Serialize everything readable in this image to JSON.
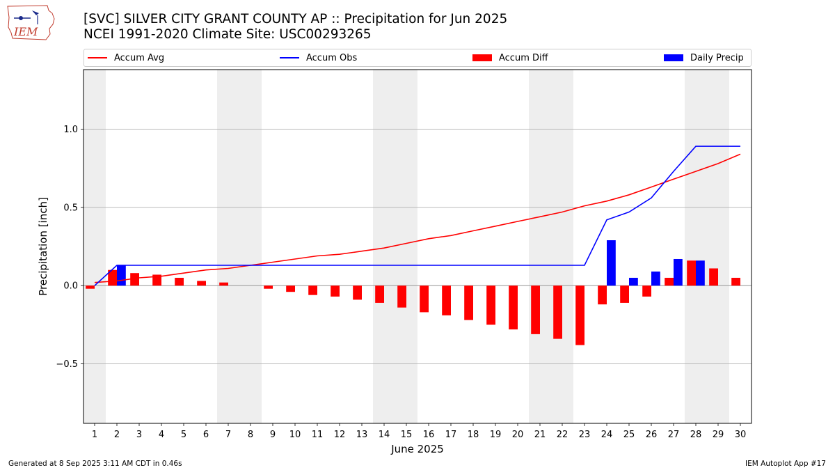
{
  "header": {
    "title_line1": "[SVC] SILVER CITY GRANT COUNTY AP :: Precipitation for Jun 2025",
    "title_line2": "NCEI 1991-2020 Climate Site: USC00293265",
    "logo_text": "IEM",
    "logo_icon": "iowa-state-map-icon"
  },
  "legend": [
    {
      "label": "Accum Avg",
      "kind": "line",
      "color": "#ff0000"
    },
    {
      "label": "Accum Obs",
      "kind": "line",
      "color": "#0000ff"
    },
    {
      "label": "Accum Diff",
      "kind": "box",
      "color": "#ff0000"
    },
    {
      "label": "Daily Precip",
      "kind": "box",
      "color": "#0000ff"
    }
  ],
  "footer": {
    "left": "Generated at 8 Sep 2025 3:11 AM CDT in 0.46s",
    "right": "IEM Autoplot App #17"
  },
  "chart_data": {
    "type": "bar",
    "xlabel": "June 2025",
    "ylabel": "Precipitation [inch]",
    "x": [
      1,
      2,
      3,
      4,
      5,
      6,
      7,
      8,
      9,
      10,
      11,
      12,
      13,
      14,
      15,
      16,
      17,
      18,
      19,
      20,
      21,
      22,
      23,
      24,
      25,
      26,
      27,
      28,
      29,
      30
    ],
    "x_tick_labels": [
      "1",
      "2",
      "3",
      "4",
      "5",
      "6",
      "7",
      "8",
      "9",
      "10",
      "11",
      "12",
      "13",
      "14",
      "15",
      "16",
      "17",
      "18",
      "19",
      "20",
      "21",
      "22",
      "23",
      "24",
      "25",
      "26",
      "27",
      "28",
      "29",
      "30"
    ],
    "ylim": [
      -0.88,
      1.38
    ],
    "y_ticks": [
      -0.5,
      0.0,
      0.5,
      1.0
    ],
    "y_tick_labels": [
      "−0.5",
      "0.0",
      "0.5",
      "1.0"
    ],
    "grid": "horizontal",
    "weekend_shading": [
      [
        1,
        1
      ],
      [
        7,
        8
      ],
      [
        14,
        15
      ],
      [
        21,
        22
      ],
      [
        28,
        29
      ]
    ],
    "colors": {
      "avg": "#ff0000",
      "obs": "#0000ff",
      "diff": "#ff0000",
      "daily": "#0000ff",
      "weekend": "#eeeeee",
      "grid": "#b0b0b0"
    },
    "series": [
      {
        "name": "Accum Avg",
        "kind": "line",
        "values": [
          0.02,
          0.03,
          0.05,
          0.06,
          0.08,
          0.1,
          0.11,
          0.13,
          0.15,
          0.17,
          0.19,
          0.2,
          0.22,
          0.24,
          0.27,
          0.3,
          0.32,
          0.35,
          0.38,
          0.41,
          0.44,
          0.47,
          0.51,
          0.54,
          0.58,
          0.63,
          0.68,
          0.73,
          0.78,
          0.84
        ]
      },
      {
        "name": "Accum Obs",
        "kind": "line",
        "values": [
          0.0,
          0.13,
          0.13,
          0.13,
          0.13,
          0.13,
          0.13,
          0.13,
          0.13,
          0.13,
          0.13,
          0.13,
          0.13,
          0.13,
          0.13,
          0.13,
          0.13,
          0.13,
          0.13,
          0.13,
          0.13,
          0.13,
          0.13,
          0.42,
          0.47,
          0.56,
          0.73,
          0.89,
          0.89,
          0.89
        ]
      },
      {
        "name": "Accum Diff",
        "kind": "bar",
        "values": [
          -0.02,
          0.1,
          0.08,
          0.07,
          0.05,
          0.03,
          0.02,
          0.0,
          -0.02,
          -0.04,
          -0.06,
          -0.07,
          -0.09,
          -0.11,
          -0.14,
          -0.17,
          -0.19,
          -0.22,
          -0.25,
          -0.28,
          -0.31,
          -0.34,
          -0.38,
          -0.12,
          -0.11,
          -0.07,
          0.05,
          0.16,
          0.11,
          0.05
        ]
      },
      {
        "name": "Daily Precip",
        "kind": "bar",
        "values": [
          0.0,
          0.13,
          0.0,
          0.0,
          0.0,
          0.0,
          0.0,
          0.0,
          0.0,
          0.0,
          0.0,
          0.0,
          0.0,
          0.0,
          0.0,
          0.0,
          0.0,
          0.0,
          0.0,
          0.0,
          0.0,
          0.0,
          0.0,
          0.29,
          0.05,
          0.09,
          0.17,
          0.16,
          0.0,
          0.0
        ]
      }
    ]
  }
}
